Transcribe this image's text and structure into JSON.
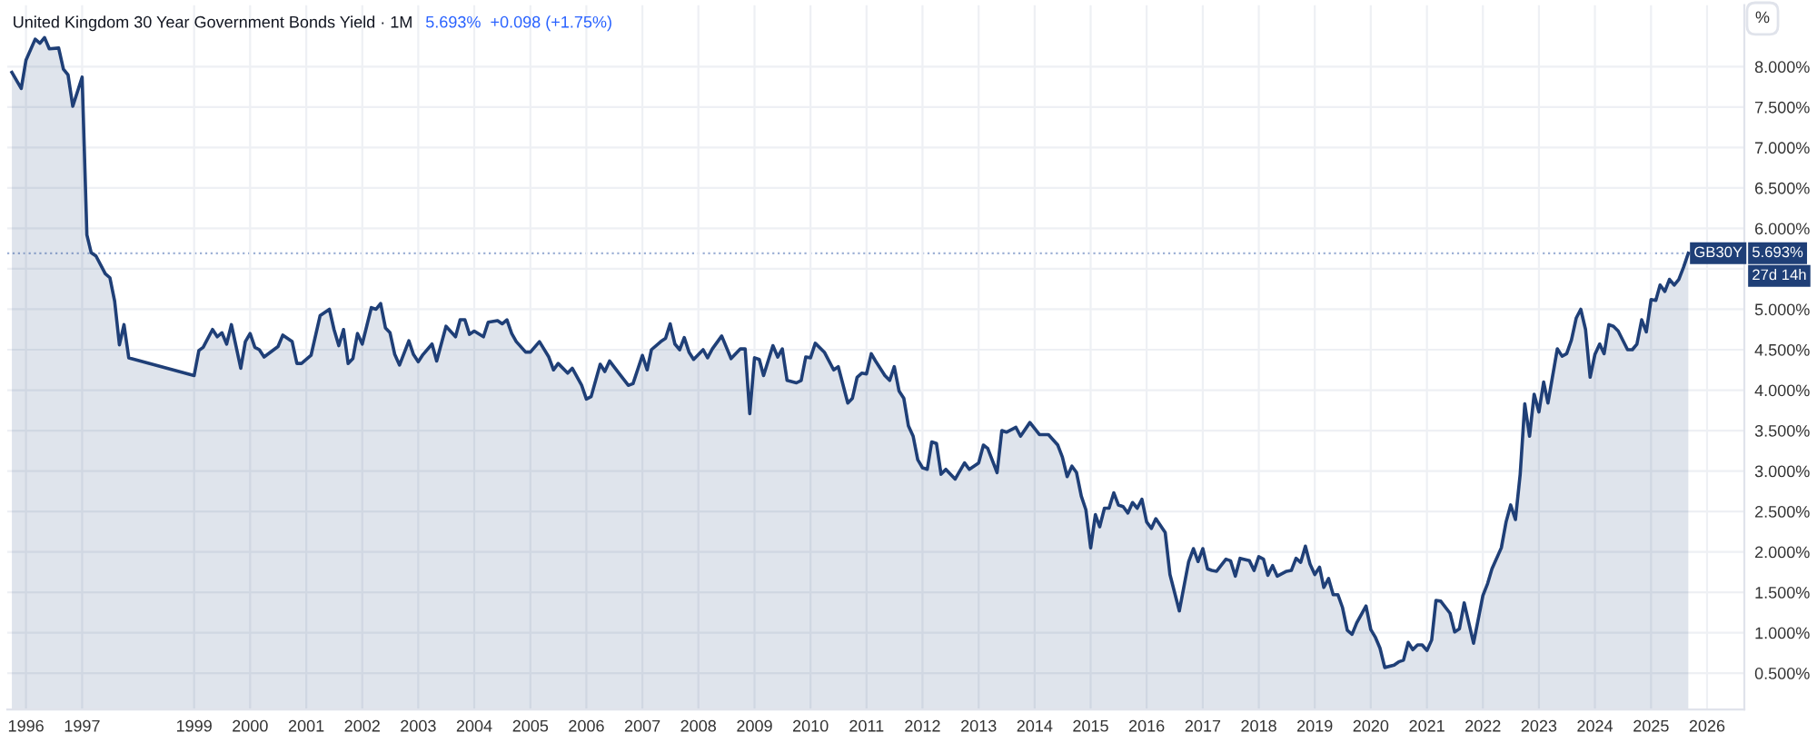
{
  "chart_data": {
    "type": "area",
    "title": "United Kingdom 30 Year Government Bonds Yield · 1M",
    "annotations": [
      "5.693%  +0.098 (+1.75%)",
      "%",
      "5.693%",
      "27d 14h"
    ],
    "x": [
      "1995-10",
      "1995-12",
      "1996-01",
      "1996-03",
      "1996-04",
      "1996-05",
      "1996-06",
      "1996-08",
      "1996-09",
      "1996-10",
      "1996-11",
      "1997-01",
      "1997-02",
      "1997-03",
      "1997-04",
      "1997-06",
      "1997-07",
      "1997-08",
      "1997-09",
      "1997-10",
      "1997-11",
      "1999-01",
      "1999-02",
      "1999-03",
      "1999-05",
      "1999-06",
      "1999-07",
      "1999-08",
      "1999-09",
      "1999-11",
      "1999-12",
      "2000-01",
      "2000-02",
      "2000-03",
      "2000-04",
      "2000-07",
      "2000-08",
      "2000-10",
      "2000-11",
      "2000-12",
      "2001-02",
      "2001-04",
      "2001-06",
      "2001-07",
      "2001-08",
      "2001-09",
      "2001-10",
      "2001-11",
      "2001-12",
      "2002-01",
      "2002-03",
      "2002-04",
      "2002-05",
      "2002-06",
      "2002-07",
      "2002-08",
      "2002-09",
      "2002-11",
      "2002-12",
      "2003-01",
      "2003-02",
      "2003-04",
      "2003-05",
      "2003-07",
      "2003-09",
      "2003-10",
      "2003-11",
      "2003-12",
      "2004-01",
      "2004-03",
      "2004-04",
      "2004-06",
      "2004-07",
      "2004-08",
      "2004-09",
      "2004-10",
      "2004-12",
      "2005-01",
      "2005-03",
      "2005-05",
      "2005-06",
      "2005-07",
      "2005-09",
      "2005-10",
      "2005-12",
      "2006-01",
      "2006-02",
      "2006-04",
      "2006-05",
      "2006-06",
      "2006-08",
      "2006-10",
      "2006-11",
      "2007-01",
      "2007-02",
      "2007-03",
      "2007-05",
      "2007-06",
      "2007-07",
      "2007-08",
      "2007-09",
      "2007-10",
      "2007-11",
      "2007-12",
      "2008-02",
      "2008-03",
      "2008-04",
      "2008-06",
      "2008-08",
      "2008-10",
      "2008-11",
      "2008-12",
      "2009-01",
      "2009-02",
      "2009-03",
      "2009-05",
      "2009-06",
      "2009-07",
      "2009-08",
      "2009-10",
      "2009-11",
      "2009-12",
      "2010-01",
      "2010-02",
      "2010-04",
      "2010-06",
      "2010-07",
      "2010-09",
      "2010-10",
      "2010-11",
      "2010-12",
      "2011-01",
      "2011-02",
      "2011-03",
      "2011-05",
      "2011-06",
      "2011-07",
      "2011-08",
      "2011-09",
      "2011-10",
      "2011-11",
      "2011-12",
      "2012-01",
      "2012-02",
      "2012-03",
      "2012-04",
      "2012-05",
      "2012-06",
      "2012-08",
      "2012-10",
      "2012-11",
      "2013-01",
      "2013-02",
      "2013-03",
      "2013-05",
      "2013-06",
      "2013-07",
      "2013-09",
      "2013-10",
      "2013-12",
      "2014-02",
      "2014-04",
      "2014-06",
      "2014-07",
      "2014-08",
      "2014-09",
      "2014-10",
      "2014-11",
      "2014-12",
      "2015-01",
      "2015-02",
      "2015-03",
      "2015-04",
      "2015-05",
      "2015-06",
      "2015-07",
      "2015-08",
      "2015-09",
      "2015-10",
      "2015-11",
      "2015-12",
      "2016-01",
      "2016-02",
      "2016-03",
      "2016-05",
      "2016-06",
      "2016-08",
      "2016-10",
      "2016-11",
      "2016-12",
      "2017-01",
      "2017-02",
      "2017-03",
      "2017-04",
      "2017-06",
      "2017-07",
      "2017-08",
      "2017-09",
      "2017-11",
      "2017-12",
      "2018-01",
      "2018-02",
      "2018-03",
      "2018-04",
      "2018-05",
      "2018-07",
      "2018-08",
      "2018-09",
      "2018-10",
      "2018-11",
      "2018-12",
      "2019-01",
      "2019-02",
      "2019-03",
      "2019-04",
      "2019-05",
      "2019-06",
      "2019-07",
      "2019-08",
      "2019-09",
      "2019-10",
      "2019-12",
      "2020-01",
      "2020-02",
      "2020-03",
      "2020-04",
      "2020-06",
      "2020-07",
      "2020-08",
      "2020-09",
      "2020-10",
      "2020-11",
      "2020-12",
      "2021-01",
      "2021-02",
      "2021-03",
      "2021-04",
      "2021-06",
      "2021-07",
      "2021-08",
      "2021-09",
      "2021-11",
      "2022-01",
      "2022-02",
      "2022-03",
      "2022-05",
      "2022-06",
      "2022-07",
      "2022-08",
      "2022-09",
      "2022-10",
      "2022-11",
      "2022-12",
      "2023-01",
      "2023-02",
      "2023-03",
      "2023-05",
      "2023-06",
      "2023-07",
      "2023-08",
      "2023-09",
      "2023-10",
      "2023-11",
      "2023-12",
      "2024-01",
      "2024-02",
      "2024-03",
      "2024-04",
      "2024-05",
      "2024-06",
      "2024-08",
      "2024-09",
      "2024-10",
      "2024-11",
      "2024-12",
      "2025-01",
      "2025-02",
      "2025-03",
      "2025-04",
      "2025-05",
      "2025-06",
      "2025-07",
      "2025-08",
      "2025-09"
    ],
    "series": [
      {
        "name": "GB30Y",
        "color": "#1f3f77",
        "values": [
          7.93,
          7.73,
          8.08,
          8.34,
          8.29,
          8.36,
          8.22,
          8.23,
          7.97,
          7.9,
          7.51,
          7.87,
          5.92,
          5.7,
          5.66,
          5.44,
          5.39,
          5.1,
          4.56,
          4.81,
          4.4,
          4.18,
          4.49,
          4.53,
          4.75,
          4.66,
          4.71,
          4.57,
          4.81,
          4.27,
          4.6,
          4.7,
          4.53,
          4.5,
          4.41,
          4.54,
          4.68,
          4.6,
          4.33,
          4.33,
          4.43,
          4.92,
          5.0,
          4.75,
          4.55,
          4.75,
          4.33,
          4.39,
          4.7,
          4.57,
          5.02,
          5.0,
          5.07,
          4.77,
          4.71,
          4.44,
          4.31,
          4.61,
          4.44,
          4.35,
          4.44,
          4.57,
          4.36,
          4.79,
          4.66,
          4.87,
          4.87,
          4.69,
          4.73,
          4.66,
          4.84,
          4.86,
          4.82,
          4.87,
          4.7,
          4.6,
          4.47,
          4.47,
          4.6,
          4.41,
          4.25,
          4.33,
          4.21,
          4.27,
          4.06,
          3.89,
          3.92,
          4.32,
          4.23,
          4.36,
          4.21,
          4.06,
          4.08,
          4.43,
          4.25,
          4.5,
          4.6,
          4.64,
          4.82,
          4.57,
          4.5,
          4.65,
          4.47,
          4.38,
          4.5,
          4.4,
          4.51,
          4.67,
          4.39,
          4.51,
          4.51,
          3.71,
          4.4,
          4.38,
          4.18,
          4.55,
          4.41,
          4.51,
          4.12,
          4.09,
          4.12,
          4.41,
          4.4,
          4.58,
          4.47,
          4.25,
          4.29,
          3.84,
          3.9,
          4.16,
          4.21,
          4.2,
          4.45,
          4.36,
          4.18,
          4.12,
          4.29,
          3.99,
          3.9,
          3.56,
          3.43,
          3.14,
          3.04,
          3.02,
          3.36,
          3.34,
          2.96,
          3.02,
          2.9,
          3.1,
          3.02,
          3.1,
          3.32,
          3.28,
          2.98,
          3.5,
          3.48,
          3.54,
          3.43,
          3.6,
          3.45,
          3.45,
          3.32,
          3.17,
          2.93,
          3.06,
          2.98,
          2.69,
          2.52,
          2.05,
          2.46,
          2.31,
          2.54,
          2.54,
          2.73,
          2.58,
          2.56,
          2.48,
          2.61,
          2.54,
          2.65,
          2.37,
          2.29,
          2.41,
          2.24,
          1.72,
          1.27,
          1.88,
          2.04,
          1.88,
          2.04,
          1.79,
          1.77,
          1.76,
          1.91,
          1.89,
          1.7,
          1.92,
          1.89,
          1.77,
          1.94,
          1.91,
          1.71,
          1.83,
          1.7,
          1.76,
          1.77,
          1.92,
          1.87,
          2.07,
          1.85,
          1.72,
          1.81,
          1.56,
          1.67,
          1.47,
          1.47,
          1.31,
          1.03,
          0.98,
          1.12,
          1.33,
          1.04,
          0.94,
          0.81,
          0.57,
          0.6,
          0.64,
          0.66,
          0.88,
          0.79,
          0.85,
          0.85,
          0.78,
          0.91,
          1.4,
          1.39,
          1.24,
          1.01,
          1.05,
          1.37,
          0.87,
          1.46,
          1.61,
          1.79,
          2.05,
          2.37,
          2.58,
          2.4,
          2.96,
          3.83,
          3.43,
          3.95,
          3.73,
          4.1,
          3.84,
          4.51,
          4.42,
          4.45,
          4.62,
          4.89,
          5.0,
          4.75,
          4.16,
          4.44,
          4.57,
          4.45,
          4.81,
          4.79,
          4.73,
          4.5,
          4.5,
          4.57,
          4.87,
          4.72,
          5.12,
          5.11,
          5.3,
          5.22,
          5.37,
          5.3,
          5.37,
          5.52,
          5.693
        ]
      }
    ],
    "xlim": [
      "1995-09",
      "2026-09"
    ],
    "xticks": [
      "1996",
      "1997",
      "1999",
      "2000",
      "2001",
      "2002",
      "2003",
      "2004",
      "2005",
      "2006",
      "2007",
      "2008",
      "2009",
      "2010",
      "2011",
      "2012",
      "2013",
      "2014",
      "2015",
      "2016",
      "2017",
      "2018",
      "2019",
      "2020",
      "2021",
      "2022",
      "2023",
      "2024",
      "2025",
      "2026"
    ],
    "ylim": [
      0.05,
      8.76
    ],
    "yticks": [
      {
        "value": 0.5,
        "label": "0.500%"
      },
      {
        "value": 1.0,
        "label": "1.000%"
      },
      {
        "value": 1.5,
        "label": "1.500%"
      },
      {
        "value": 2.0,
        "label": "2.000%"
      },
      {
        "value": 2.5,
        "label": "2.500%"
      },
      {
        "value": 3.0,
        "label": "3.000%"
      },
      {
        "value": 3.5,
        "label": "3.500%"
      },
      {
        "value": 4.0,
        "label": "4.000%"
      },
      {
        "value": 4.5,
        "label": "4.500%"
      },
      {
        "value": 5.0,
        "label": "5.000%"
      },
      {
        "value": 5.5,
        "label": null
      },
      {
        "value": 6.0,
        "label": "6.000%"
      },
      {
        "value": 6.5,
        "label": "6.500%"
      },
      {
        "value": 7.0,
        "label": "7.000%"
      },
      {
        "value": 7.5,
        "label": "7.500%"
      },
      {
        "value": 8.0,
        "label": "8.000%"
      }
    ],
    "ref_lines": [
      {
        "axis": "y",
        "value": 5.693,
        "color": "#9fb2d6",
        "line_style": "dotted"
      }
    ],
    "grid": true,
    "line_style": "solid"
  }
}
